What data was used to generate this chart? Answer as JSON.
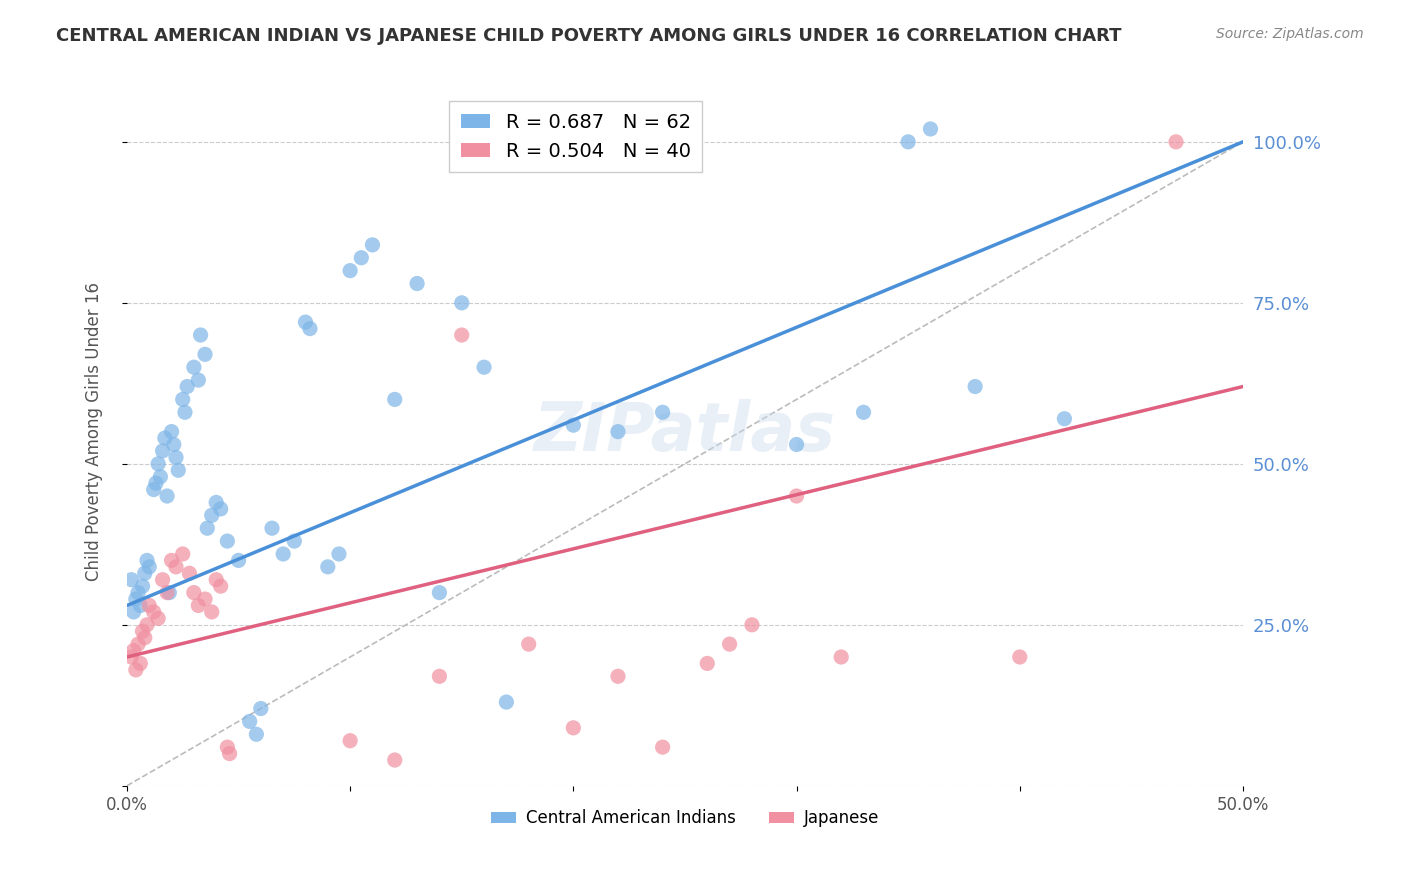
{
  "title": "CENTRAL AMERICAN INDIAN VS JAPANESE CHILD POVERTY AMONG GIRLS UNDER 16 CORRELATION CHART",
  "source": "Source: ZipAtlas.com",
  "xlabel": "",
  "ylabel": "Child Poverty Among Girls Under 16",
  "xlim": [
    0.0,
    0.5
  ],
  "ylim": [
    0.0,
    1.05
  ],
  "yticks": [
    0.0,
    0.25,
    0.5,
    0.75,
    1.0
  ],
  "ytick_labels": [
    "",
    "25.0%",
    "50.0%",
    "75.0%",
    "100.0%"
  ],
  "xticks": [
    0.0,
    0.1,
    0.2,
    0.3,
    0.4,
    0.5
  ],
  "xtick_labels": [
    "0.0%",
    "",
    "",
    "",
    "",
    "50.0%"
  ],
  "legend_label1": "R = 0.687   N = 62",
  "legend_label2": "R = 0.504   N = 40",
  "legend_entry1": "Central American Indians",
  "legend_entry2": "Japanese",
  "color_blue": "#7EB5E8",
  "color_pink": "#F090A0",
  "line_blue": "#4A90D9",
  "line_pink": "#E06080",
  "line_dashed": "#BBBBBB",
  "watermark": "ZIPatlas",
  "blue_points": [
    [
      0.002,
      0.32
    ],
    [
      0.003,
      0.27
    ],
    [
      0.004,
      0.29
    ],
    [
      0.005,
      0.3
    ],
    [
      0.006,
      0.28
    ],
    [
      0.007,
      0.31
    ],
    [
      0.008,
      0.33
    ],
    [
      0.009,
      0.35
    ],
    [
      0.01,
      0.34
    ],
    [
      0.012,
      0.46
    ],
    [
      0.013,
      0.47
    ],
    [
      0.014,
      0.5
    ],
    [
      0.015,
      0.48
    ],
    [
      0.016,
      0.52
    ],
    [
      0.017,
      0.54
    ],
    [
      0.018,
      0.45
    ],
    [
      0.019,
      0.3
    ],
    [
      0.02,
      0.55
    ],
    [
      0.021,
      0.53
    ],
    [
      0.022,
      0.51
    ],
    [
      0.023,
      0.49
    ],
    [
      0.025,
      0.6
    ],
    [
      0.026,
      0.58
    ],
    [
      0.027,
      0.62
    ],
    [
      0.03,
      0.65
    ],
    [
      0.032,
      0.63
    ],
    [
      0.033,
      0.7
    ],
    [
      0.035,
      0.67
    ],
    [
      0.036,
      0.4
    ],
    [
      0.038,
      0.42
    ],
    [
      0.04,
      0.44
    ],
    [
      0.042,
      0.43
    ],
    [
      0.045,
      0.38
    ],
    [
      0.05,
      0.35
    ],
    [
      0.055,
      0.1
    ],
    [
      0.058,
      0.08
    ],
    [
      0.06,
      0.12
    ],
    [
      0.065,
      0.4
    ],
    [
      0.07,
      0.36
    ],
    [
      0.075,
      0.38
    ],
    [
      0.08,
      0.72
    ],
    [
      0.082,
      0.71
    ],
    [
      0.09,
      0.34
    ],
    [
      0.095,
      0.36
    ],
    [
      0.1,
      0.8
    ],
    [
      0.105,
      0.82
    ],
    [
      0.11,
      0.84
    ],
    [
      0.12,
      0.6
    ],
    [
      0.13,
      0.78
    ],
    [
      0.14,
      0.3
    ],
    [
      0.15,
      0.75
    ],
    [
      0.16,
      0.65
    ],
    [
      0.17,
      0.13
    ],
    [
      0.2,
      0.56
    ],
    [
      0.22,
      0.55
    ],
    [
      0.24,
      0.58
    ],
    [
      0.3,
      0.53
    ],
    [
      0.33,
      0.58
    ],
    [
      0.35,
      1.0
    ],
    [
      0.36,
      1.02
    ],
    [
      0.38,
      0.62
    ],
    [
      0.42,
      0.57
    ]
  ],
  "pink_points": [
    [
      0.002,
      0.2
    ],
    [
      0.003,
      0.21
    ],
    [
      0.004,
      0.18
    ],
    [
      0.005,
      0.22
    ],
    [
      0.006,
      0.19
    ],
    [
      0.007,
      0.24
    ],
    [
      0.008,
      0.23
    ],
    [
      0.009,
      0.25
    ],
    [
      0.01,
      0.28
    ],
    [
      0.012,
      0.27
    ],
    [
      0.014,
      0.26
    ],
    [
      0.016,
      0.32
    ],
    [
      0.018,
      0.3
    ],
    [
      0.02,
      0.35
    ],
    [
      0.022,
      0.34
    ],
    [
      0.025,
      0.36
    ],
    [
      0.028,
      0.33
    ],
    [
      0.03,
      0.3
    ],
    [
      0.032,
      0.28
    ],
    [
      0.035,
      0.29
    ],
    [
      0.038,
      0.27
    ],
    [
      0.04,
      0.32
    ],
    [
      0.042,
      0.31
    ],
    [
      0.045,
      0.06
    ],
    [
      0.046,
      0.05
    ],
    [
      0.1,
      0.07
    ],
    [
      0.12,
      0.04
    ],
    [
      0.14,
      0.17
    ],
    [
      0.15,
      0.7
    ],
    [
      0.18,
      0.22
    ],
    [
      0.2,
      0.09
    ],
    [
      0.22,
      0.17
    ],
    [
      0.24,
      0.06
    ],
    [
      0.26,
      0.19
    ],
    [
      0.27,
      0.22
    ],
    [
      0.28,
      0.25
    ],
    [
      0.3,
      0.45
    ],
    [
      0.32,
      0.2
    ],
    [
      0.4,
      0.2
    ],
    [
      0.47,
      1.0
    ]
  ],
  "blue_line": {
    "x0": 0.0,
    "y0": 0.28,
    "x1": 0.5,
    "y1": 1.0
  },
  "pink_line": {
    "x0": 0.0,
    "y0": 0.2,
    "x1": 0.5,
    "y1": 0.62
  },
  "dashed_line": {
    "x0": 0.0,
    "y0": 0.0,
    "x1": 0.5,
    "y1": 1.0
  }
}
